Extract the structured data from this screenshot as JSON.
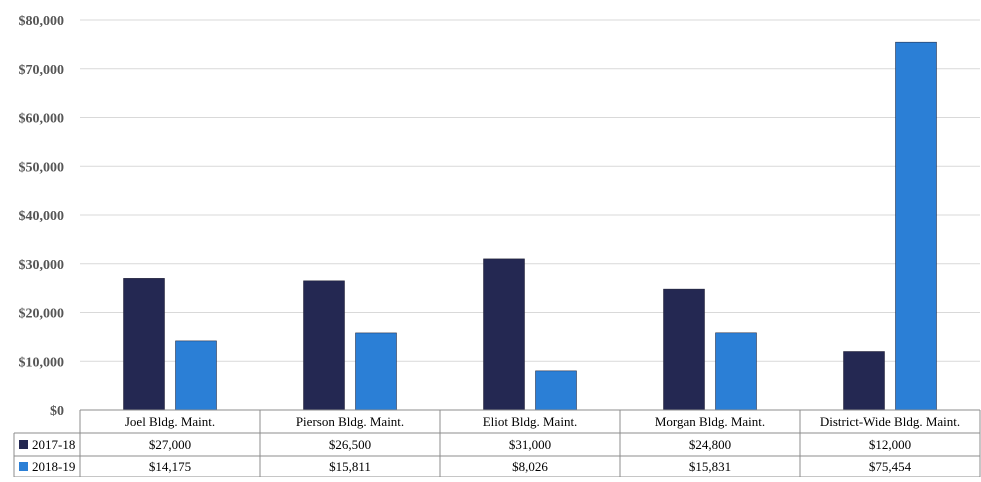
{
  "chart_data": {
    "type": "bar",
    "categories": [
      "Joel Bldg. Maint.",
      "Pierson Bldg. Maint.",
      "Eliot Bldg. Maint.",
      "Morgan Bldg. Maint.",
      "District-Wide Bldg. Maint."
    ],
    "series": [
      {
        "name": "2017-18",
        "values": [
          27000,
          26500,
          31000,
          24800,
          12000
        ],
        "labels": [
          "$27,000",
          "$26,500",
          "$31,000",
          "$24,800",
          "$12,000"
        ],
        "color": "#242852"
      },
      {
        "name": "2018-19",
        "values": [
          14175,
          15811,
          8026,
          15831,
          75454
        ],
        "labels": [
          "$14,175",
          "$15,811",
          "$8,026",
          "$15,831",
          "$75,454"
        ],
        "color": "#2b7fd6"
      }
    ],
    "ylim": [
      0,
      80000
    ],
    "yticks": [
      0,
      10000,
      20000,
      30000,
      40000,
      50000,
      60000,
      70000,
      80000
    ],
    "ytick_labels": [
      "$0",
      "$10,000",
      "$20,000",
      "$30,000",
      "$40,000",
      "$50,000",
      "$60,000",
      "$70,000",
      "$80,000"
    ],
    "grid": true,
    "legend": "data-table"
  }
}
